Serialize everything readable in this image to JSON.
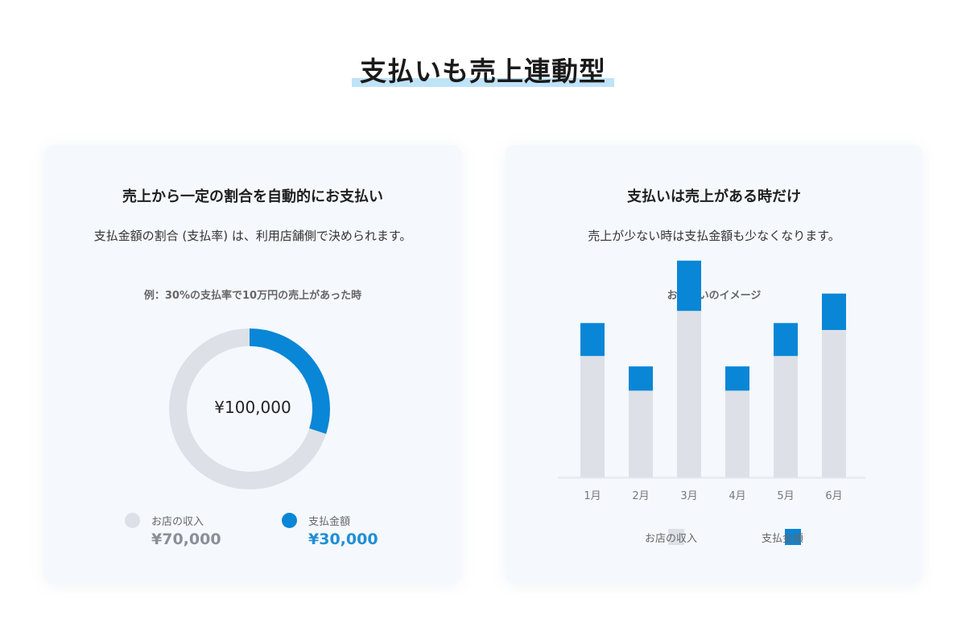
{
  "page": {
    "title": "支払いも売上連動型"
  },
  "colors": {
    "income": "#dde1e7",
    "payment": "#0a86d6",
    "underline": "#bfe3f7"
  },
  "left_card": {
    "title": "売上から一定の割合を自動的にお支払い",
    "description": "支払金額の割合 (支払率) は、利用店舗側で決められます。",
    "caption": "例：30%の支払率で10万円の売上があった時",
    "center_label": "¥100,000",
    "legend": [
      {
        "label": "お店の収入",
        "value": "¥70,000"
      },
      {
        "label": "支払金額",
        "value": "¥30,000"
      }
    ]
  },
  "right_card": {
    "title": "支払いは売上がある時だけ",
    "description": "売上が少ない時は支払金額も少なくなります。",
    "caption": "お支払いのイメージ",
    "legend": [
      {
        "label": "お店の収入"
      },
      {
        "label": "支払金額"
      }
    ]
  },
  "chart_data": [
    {
      "type": "pie",
      "categories": [
        "お店の収入",
        "支払金額"
      ],
      "values": [
        70000,
        30000
      ],
      "title": "例：30%の支払率で10万円の売上があった時"
    },
    {
      "type": "bar",
      "categories": [
        "1月",
        "2月",
        "3月",
        "4月",
        "5月",
        "6月"
      ],
      "series": [
        {
          "name": "お店の収入",
          "values": [
            70,
            50,
            96,
            50,
            70,
            85
          ]
        },
        {
          "name": "支払金額",
          "values": [
            19,
            14,
            29,
            14,
            19,
            21
          ]
        }
      ],
      "title": "お支払いのイメージ",
      "stacked": true,
      "ylim": [
        0,
        130
      ],
      "grid": false,
      "legend": "bottom"
    }
  ]
}
